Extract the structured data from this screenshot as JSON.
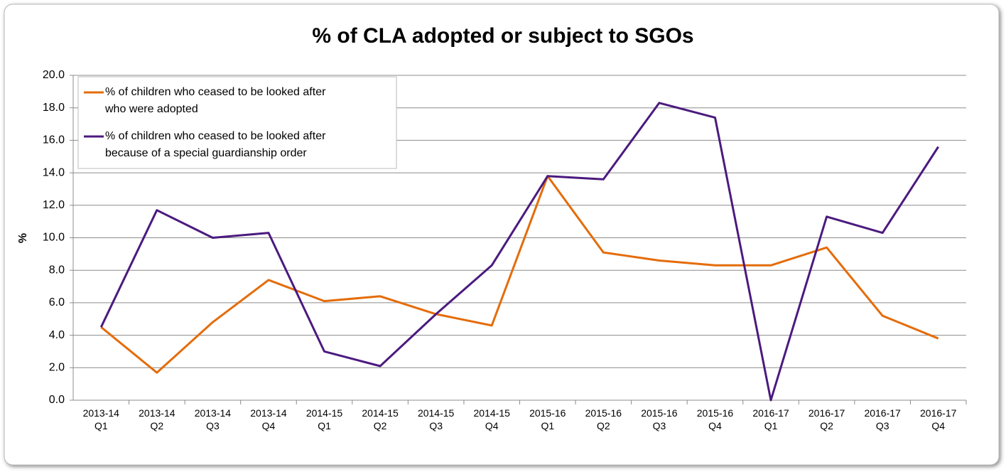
{
  "chart_data": {
    "type": "line",
    "title": "% of CLA adopted or subject to SGOs",
    "ylabel": "%",
    "categories": [
      "2013-14 Q1",
      "2013-14 Q2",
      "2013-14 Q3",
      "2013-14 Q4",
      "2014-15 Q1",
      "2014-15 Q2",
      "2014-15 Q3",
      "2014-15 Q4",
      "2015-16 Q1",
      "2015-16 Q2",
      "2015-16 Q3",
      "2015-16 Q4",
      "2016-17 Q1",
      "2016-17 Q2",
      "2016-17 Q3",
      "2016-17 Q4"
    ],
    "series": [
      {
        "name": "% of children who ceased to be looked after who were adopted",
        "color": "#e46c0a",
        "values": [
          4.5,
          1.7,
          4.8,
          7.4,
          6.1,
          6.4,
          5.3,
          4.6,
          13.8,
          9.1,
          8.6,
          8.3,
          8.3,
          9.4,
          5.2,
          3.8
        ]
      },
      {
        "name": "% of children who ceased to be looked after because of a special guardianship order",
        "color": "#4b1a7f",
        "values": [
          4.5,
          11.7,
          10.0,
          10.3,
          3.0,
          2.1,
          5.3,
          8.3,
          13.8,
          13.6,
          18.3,
          17.4,
          0.0,
          11.3,
          10.3,
          15.6
        ]
      }
    ],
    "ylim": [
      0,
      20
    ],
    "yticks": [
      {
        "value": 0,
        "label": "0.0"
      },
      {
        "value": 2,
        "label": "2.0"
      },
      {
        "value": 4,
        "label": "4.0"
      },
      {
        "value": 6,
        "label": "6.0"
      },
      {
        "value": 8,
        "label": "8.0"
      },
      {
        "value": 10,
        "label": "10.0"
      },
      {
        "value": 12,
        "label": "12.0"
      },
      {
        "value": 14,
        "label": "14.0"
      },
      {
        "value": 16,
        "label": "16.0"
      },
      {
        "value": 18,
        "label": "18.0"
      },
      {
        "value": 20,
        "label": "20.0"
      }
    ],
    "grid": true,
    "legend": "top-left"
  }
}
